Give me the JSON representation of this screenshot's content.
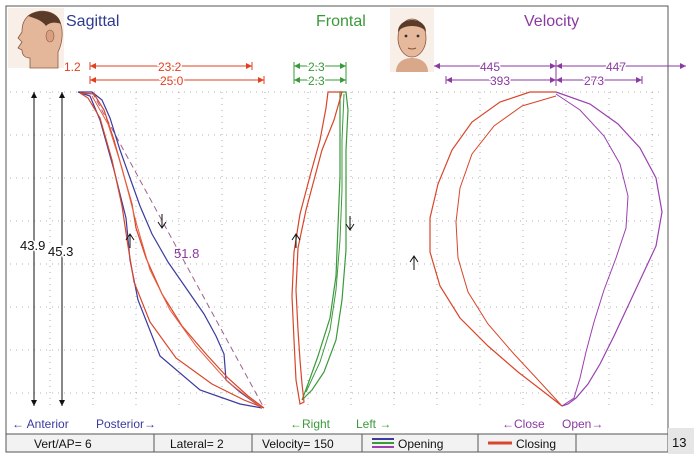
{
  "colors": {
    "sagittal": "#2e3b8f",
    "frontal": "#3a9a3a",
    "velocity": "#8a3aa0",
    "closing": "#d9452a",
    "opening_blue": "#3a3aa0",
    "opening_green": "#3a9a3a",
    "opening_purple": "#9a40b0",
    "dim": "#e04020",
    "grid": "#9a9a9a"
  },
  "titles": {
    "sagittal": "Sagittal",
    "frontal": "Frontal",
    "velocity": "Velocity"
  },
  "icons": {
    "side_face": "face-profile-icon",
    "front_face": "face-front-icon"
  },
  "sagittal": {
    "dim_top_small": "1.2",
    "dim_top_a": "23.2",
    "dim_top_b": "25.0",
    "vert_a": "43.9",
    "vert_b": "45.3",
    "diagonal": "51.8",
    "axis_left": "← Anterior",
    "axis_right": "Posterior→"
  },
  "frontal": {
    "dim_a": "2.3",
    "dim_b": "2.3",
    "axis_left": "←Right",
    "axis_right": "Left →"
  },
  "velocity": {
    "dim_a_left": "445",
    "dim_a_right": "447",
    "dim_b_left": "393",
    "dim_b_right": "273",
    "axis_left": "←Close",
    "axis_right": "Open→"
  },
  "status": {
    "vert_ap": "Vert/AP= 6",
    "lateral": "Lateral= 2",
    "velocity": "Velocity= 150",
    "opening": "Opening",
    "closing": "Closing"
  },
  "figure_number": "13",
  "chart_data": {
    "type": "line",
    "panels": [
      {
        "title": "Sagittal",
        "series_closing": {
          "start": [
            0,
            0
          ],
          "end": [
            25.0,
            -45.3
          ]
        },
        "series_opening": {
          "start": [
            0,
            0
          ],
          "end": [
            23.2,
            -43.9
          ]
        },
        "measurements": {
          "horizontal": [
            1.2,
            23.2,
            25.0
          ],
          "vertical": [
            43.9,
            45.3
          ],
          "diagonal": 51.8
        }
      },
      {
        "title": "Frontal",
        "measurements": {
          "lateral": [
            2.3,
            2.3
          ]
        }
      },
      {
        "title": "Velocity",
        "measurements": {
          "close": [
            445,
            393
          ],
          "open": [
            447,
            273
          ]
        }
      }
    ]
  }
}
